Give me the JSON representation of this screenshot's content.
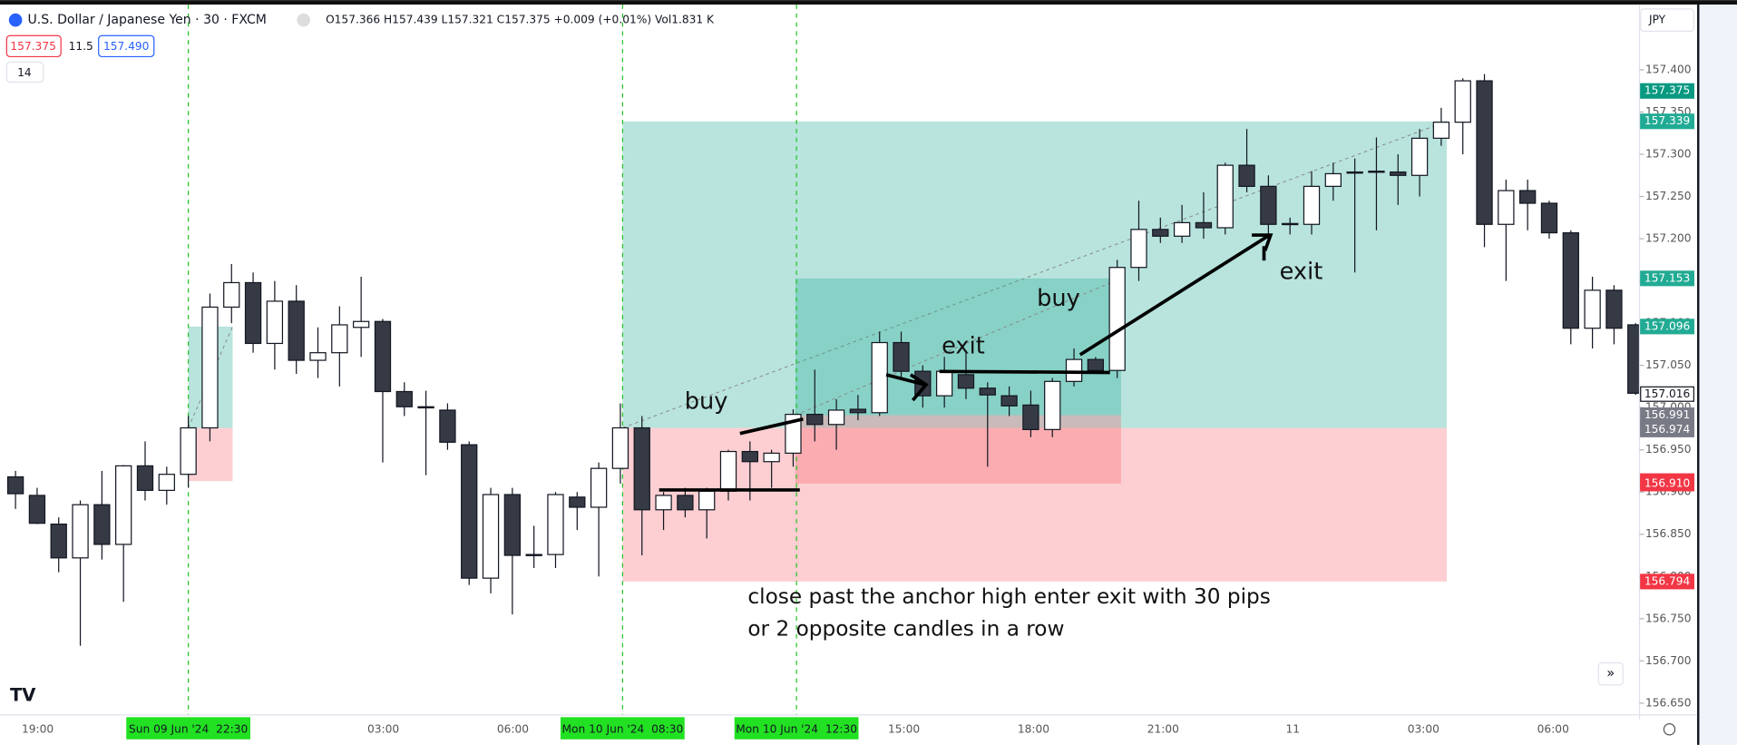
{
  "header": {
    "symbol": "U.S. Dollar / Japanese Yen · 30 · FXCM",
    "ohlc": "O157.366 H157.439 L157.321 C157.375 +0.009 (+0.01%) Vol1.831 K",
    "sell": "157.375",
    "spread": "11.5",
    "buy": "157.490",
    "indicators": "14",
    "currency": "JPY"
  },
  "chart_data": {
    "type": "candlestick",
    "open": [
      156.918,
      156.896,
      156.862,
      156.822,
      156.885,
      156.838,
      156.931,
      156.902,
      156.921,
      156.976,
      157.119,
      157.148,
      157.076,
      157.126,
      157.056,
      157.065,
      157.095,
      157.102,
      157.019,
      157.001,
      156.997,
      156.956,
      156.798,
      156.897,
      156.825,
      156.826,
      156.894,
      156.882,
      156.928,
      156.976,
      156.879,
      156.896,
      156.879,
      156.901,
      156.948,
      156.936,
      156.946,
      156.992,
      156.98,
      156.998,
      156.994,
      157.077,
      157.043,
      157.014,
      157.039,
      157.023,
      157.014,
      157.003,
      156.974,
      157.031,
      157.057,
      157.044,
      157.166,
      157.211,
      157.203,
      157.219,
      157.213,
      157.287,
      157.262,
      157.217,
      157.217,
      157.262,
      157.278,
      157.279,
      157.279,
      157.275,
      157.319,
      157.338,
      157.387,
      157.217,
      157.257,
      157.242,
      157.207,
      157.094,
      157.139,
      157.098
    ],
    "high": [
      156.925,
      156.905,
      156.87,
      156.89,
      156.925,
      156.932,
      156.96,
      156.93,
      156.99,
      157.135,
      157.17,
      157.16,
      157.15,
      157.145,
      157.095,
      157.12,
      157.155,
      157.105,
      157.03,
      157.02,
      157.005,
      156.96,
      156.905,
      156.905,
      156.86,
      156.9,
      156.9,
      156.935,
      157.005,
      156.99,
      156.9,
      156.905,
      156.905,
      156.95,
      156.96,
      156.95,
      156.998,
      157.045,
      157.01,
      157.015,
      157.09,
      157.09,
      157.05,
      157.06,
      157.065,
      157.03,
      157.025,
      157.02,
      157.035,
      157.07,
      157.06,
      157.175,
      157.245,
      157.225,
      157.24,
      157.255,
      157.29,
      157.33,
      157.275,
      157.225,
      157.28,
      157.29,
      157.295,
      157.32,
      157.3,
      157.33,
      157.355,
      157.39,
      157.395,
      157.27,
      157.27,
      157.245,
      157.21,
      157.155,
      157.145,
      157.1
    ],
    "low": [
      156.88,
      156.862,
      156.805,
      156.718,
      156.82,
      156.77,
      156.89,
      156.885,
      156.905,
      156.96,
      157.1,
      157.065,
      157.045,
      157.04,
      157.035,
      157.025,
      157.06,
      156.935,
      156.99,
      156.92,
      156.95,
      156.79,
      156.78,
      156.755,
      156.81,
      156.81,
      156.855,
      156.8,
      156.91,
      156.825,
      156.855,
      156.87,
      156.845,
      156.89,
      156.89,
      156.905,
      156.93,
      156.96,
      156.95,
      156.985,
      156.99,
      157.035,
      157.0,
      157.0,
      157.01,
      156.93,
      156.99,
      156.965,
      156.965,
      157.025,
      157.04,
      157.035,
      157.15,
      157.195,
      157.195,
      157.2,
      157.205,
      157.255,
      157.2,
      157.205,
      157.205,
      157.245,
      157.16,
      157.21,
      157.24,
      157.25,
      157.31,
      157.3,
      157.19,
      157.15,
      157.21,
      157.2,
      157.075,
      157.07,
      157.075,
      157.015
    ],
    "close": [
      156.898,
      156.863,
      156.822,
      156.885,
      156.838,
      156.931,
      156.902,
      156.921,
      156.976,
      157.119,
      157.148,
      157.076,
      157.126,
      157.056,
      157.065,
      157.098,
      157.102,
      157.019,
      157.001,
      157.0,
      156.959,
      156.798,
      156.897,
      156.825,
      156.826,
      156.897,
      156.882,
      156.928,
      156.976,
      156.879,
      156.896,
      156.879,
      156.901,
      156.948,
      156.936,
      156.946,
      156.992,
      156.98,
      156.997,
      156.994,
      157.077,
      157.043,
      157.014,
      157.043,
      157.023,
      157.015,
      157.002,
      156.974,
      157.031,
      157.057,
      157.044,
      157.166,
      157.211,
      157.203,
      157.219,
      157.213,
      157.287,
      157.262,
      157.217,
      157.218,
      157.262,
      157.277,
      157.279,
      157.28,
      157.275,
      157.319,
      157.338,
      157.387,
      157.217,
      157.257,
      157.242,
      157.207,
      157.094,
      157.139,
      157.094,
      157.017
    ],
    "up_color": "#ffffff",
    "down_color": "#363a45",
    "ylim": [
      156.636,
      157.476
    ],
    "yticks": [
      {
        "value": 157.4,
        "label": "157.400"
      },
      {
        "value": 157.35,
        "label": "157.350"
      },
      {
        "value": 157.3,
        "label": "157.300"
      },
      {
        "value": 157.25,
        "label": "157.250"
      },
      {
        "value": 157.2,
        "label": "157.200"
      },
      {
        "value": 157.15,
        "label": "157.150"
      },
      {
        "value": 157.1,
        "label": "157.100"
      },
      {
        "value": 157.05,
        "label": "157.050"
      },
      {
        "value": 157,
        "label": "157.000"
      },
      {
        "value": 156.95,
        "label": "156.950"
      },
      {
        "value": 156.9,
        "label": "156.900"
      },
      {
        "value": 156.85,
        "label": "156.850"
      },
      {
        "value": 156.8,
        "label": "156.800"
      },
      {
        "value": 156.75,
        "label": "156.750"
      },
      {
        "value": 156.7,
        "label": "156.700"
      },
      {
        "value": 156.65,
        "label": "156.650"
      }
    ],
    "time_labels": [
      "19:00",
      "03:00",
      "06:00",
      "15:00",
      "18:00",
      "21:00",
      "11",
      "03:00",
      "06:00"
    ],
    "markers": [
      "Sun 09 Jun '24  22:30",
      "Mon 10 Jun '24  08:30",
      "Mon 10 Jun '24  12:30"
    ],
    "price_tags": [
      {
        "value": 157.375,
        "label": "157.375",
        "color": "#089981"
      },
      {
        "value": 157.339,
        "label": "157.339",
        "color": "#22ab94"
      },
      {
        "value": 157.153,
        "label": "157.153",
        "color": "#22ab94"
      },
      {
        "value": 157.096,
        "label": "157.096",
        "color": "#22ab94"
      },
      {
        "value": 157.016,
        "label": "157.016",
        "color": "#ffffff"
      },
      {
        "value": 156.991,
        "label": "156.991",
        "color": "#787b86"
      },
      {
        "value": 156.976,
        "label": "156.976",
        "color": "#787b86"
      },
      {
        "value": 156.974,
        "label": "156.974",
        "color": "#787b86"
      },
      {
        "value": 156.913,
        "label": "156.913",
        "color": "#f23645"
      },
      {
        "value": 156.91,
        "label": "156.910",
        "color": "#f23645"
      },
      {
        "value": 156.794,
        "label": "156.794",
        "color": "#f23645"
      }
    ],
    "positions": [
      {
        "target": 157.096,
        "entry": 156.976,
        "stop": 156.913
      },
      {
        "target": 157.339,
        "entry": 156.976,
        "stop": 156.794
      },
      {
        "target": 157.153,
        "entry": 156.991,
        "stop": 156.91
      }
    ],
    "annotations": [
      "buy",
      "exit",
      "buy",
      "exit",
      "close past the anchor high  enter exit with 30 pips",
      "or 2 opposite candles in a row"
    ]
  }
}
